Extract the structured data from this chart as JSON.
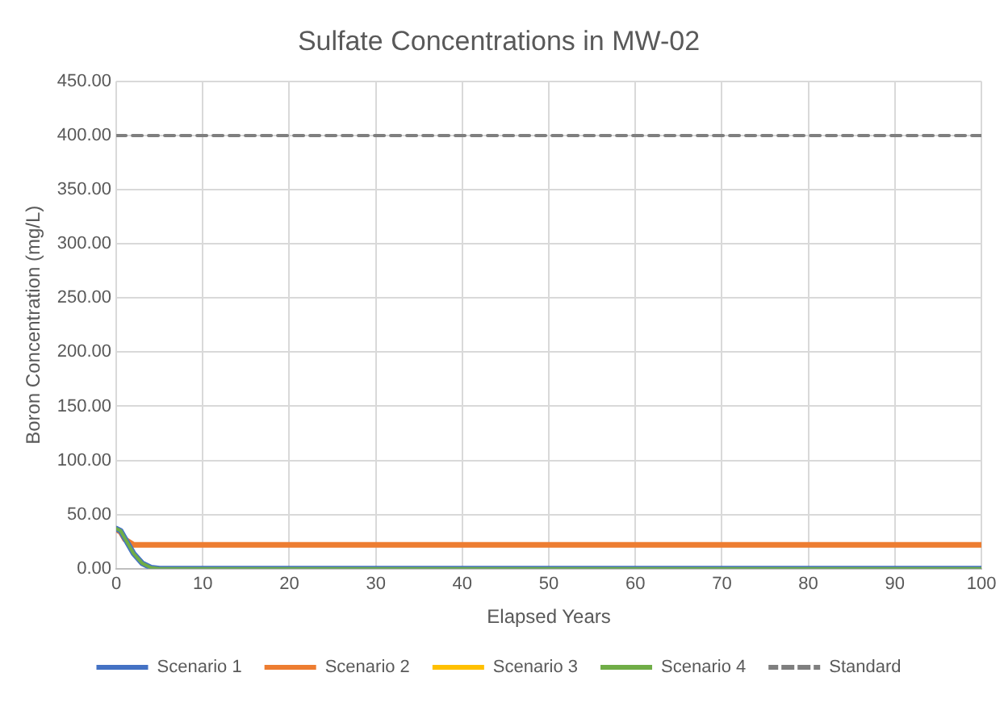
{
  "chart_data": {
    "type": "line",
    "title": "Sulfate Concentrations in MW-02",
    "xlabel": "Elapsed Years",
    "ylabel": "Boron Concentration (mg/L)",
    "x": [
      0,
      0.5,
      1,
      2,
      3,
      4,
      5,
      10,
      20,
      30,
      40,
      50,
      60,
      70,
      80,
      90,
      100
    ],
    "series": [
      {
        "name": "Scenario 1",
        "color": "#4472c4",
        "values": [
          37,
          35,
          28,
          14,
          5,
          1,
          0,
          0,
          0,
          0,
          0,
          0,
          0,
          0,
          0,
          0,
          0
        ]
      },
      {
        "name": "Scenario 2",
        "color": "#ed7d31",
        "values": [
          36,
          34,
          27,
          22,
          22,
          22,
          22,
          22,
          22,
          22,
          22,
          22,
          22,
          22,
          22,
          22,
          22
        ]
      },
      {
        "name": "Scenario 3",
        "color": "#ffc000",
        "values": [
          null,
          null,
          null,
          null,
          null,
          null,
          null,
          null,
          null,
          null,
          null,
          null,
          null,
          null,
          null,
          null,
          null
        ]
      },
      {
        "name": "Scenario 4",
        "color": "#70ad47",
        "values": [
          37,
          35,
          28,
          14,
          5,
          1,
          0,
          0,
          0,
          0,
          0,
          0,
          0,
          0,
          0,
          0,
          0
        ]
      },
      {
        "name": "Standard",
        "color": "#7f7f7f",
        "line_style": "dashed",
        "values": [
          400,
          400,
          400,
          400,
          400,
          400,
          400,
          400,
          400,
          400,
          400,
          400,
          400,
          400,
          400,
          400,
          400
        ]
      }
    ],
    "xlim": [
      0,
      100
    ],
    "xticks": [
      0,
      10,
      20,
      30,
      40,
      50,
      60,
      70,
      80,
      90,
      100
    ],
    "ylim": [
      0,
      450
    ],
    "yticks": [
      {
        "value": 0,
        "label": "0.00"
      },
      {
        "value": 50,
        "label": "50.00"
      },
      {
        "value": 100,
        "label": "100.00"
      },
      {
        "value": 150,
        "label": "150.00"
      },
      {
        "value": 200,
        "label": "200.00"
      },
      {
        "value": 250,
        "label": "250.00"
      },
      {
        "value": 300,
        "label": "300.00"
      },
      {
        "value": 350,
        "label": "350.00"
      },
      {
        "value": 400,
        "label": "400.00"
      },
      {
        "value": 450,
        "label": "450.00"
      }
    ],
    "grid": true,
    "legend": "bottom",
    "marker": "none",
    "line_style": "solid"
  }
}
